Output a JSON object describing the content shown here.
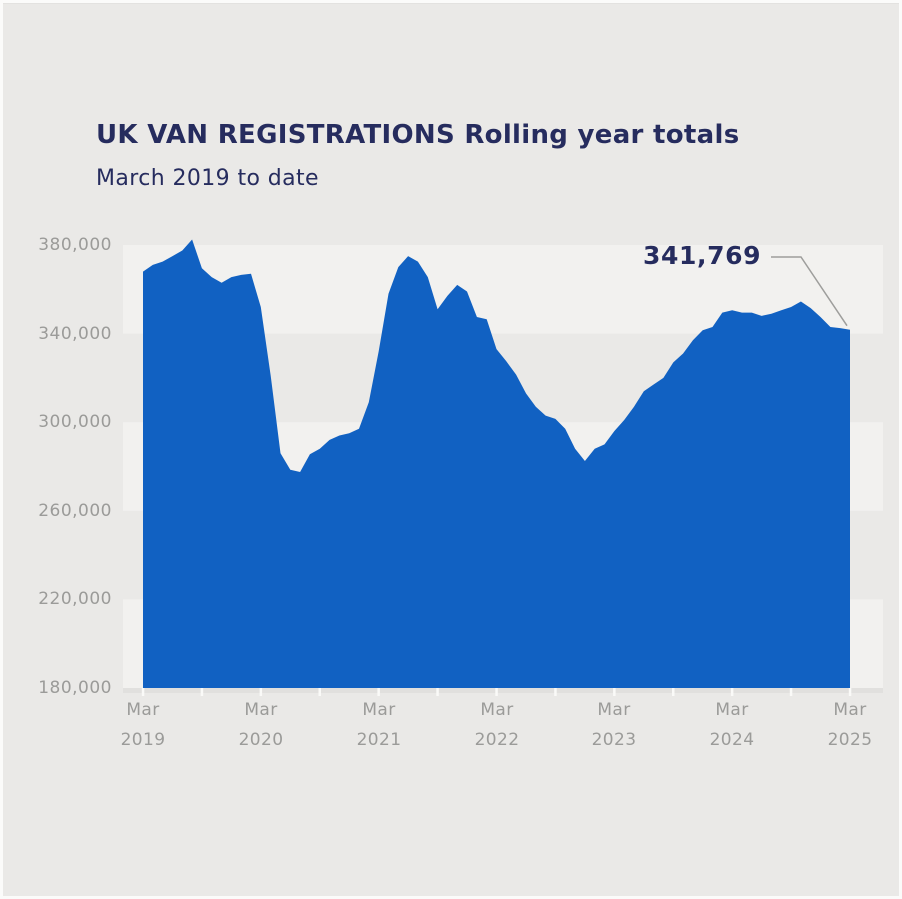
{
  "page": {
    "title": "UK VAN REGISTRATIONS Rolling year totals",
    "subtitle": "March 2019 to date"
  },
  "chart_data": {
    "type": "area",
    "title": "UK VAN REGISTRATIONS Rolling year totals",
    "subtitle": "March 2019 to date",
    "series_name": "UK van registrations, rolling year total",
    "x_interval": "monthly",
    "x_start": "Mar 2019",
    "x_end": "Mar 2025",
    "values": [
      368000,
      371000,
      372500,
      375000,
      377500,
      382500,
      369500,
      365500,
      363000,
      365500,
      366500,
      367000,
      352000,
      321000,
      286000,
      278500,
      277500,
      285500,
      288000,
      292000,
      294000,
      295000,
      297000,
      309000,
      332000,
      358000,
      370000,
      375000,
      372500,
      365500,
      351000,
      357000,
      362000,
      359000,
      347500,
      346500,
      333000,
      327500,
      321500,
      313000,
      307000,
      303000,
      301500,
      297000,
      288000,
      282500,
      288000,
      290000,
      296000,
      301000,
      307000,
      314000,
      317000,
      320000,
      327000,
      331000,
      337000,
      341500,
      343000,
      349500,
      350500,
      349500,
      349500,
      348000,
      349000,
      350500,
      352000,
      354500,
      351500,
      347500,
      343000,
      342500,
      341769
    ],
    "ylim": [
      180000,
      380000
    ],
    "y_ticks": [
      {
        "value": 380000,
        "label": "380,000"
      },
      {
        "value": 340000,
        "label": "340,000"
      },
      {
        "value": 300000,
        "label": "300,000"
      },
      {
        "value": 260000,
        "label": "260,000"
      },
      {
        "value": 220000,
        "label": "220,000"
      },
      {
        "value": 180000,
        "label": "180,000"
      }
    ],
    "x_ticks": [
      {
        "month": "Mar",
        "year": "2019"
      },
      {
        "month": "Mar",
        "year": "2020"
      },
      {
        "month": "Mar",
        "year": "2021"
      },
      {
        "month": "Mar",
        "year": "2022"
      },
      {
        "month": "Mar",
        "year": "2023"
      },
      {
        "month": "Mar",
        "year": "2024"
      },
      {
        "month": "Mar",
        "year": "2025"
      }
    ],
    "bands": [
      [
        380000,
        340000
      ],
      [
        300000,
        260000
      ],
      [
        220000,
        180000
      ]
    ],
    "grid": "alternating horizontal value bands, no gridlines",
    "legend": "none",
    "annotation": {
      "label": "341,769",
      "value": 341769,
      "x": "Mar 2025"
    }
  },
  "colors": {
    "background": "#eae9e7",
    "band": "#f2f1ef",
    "area": "#1161c2",
    "navy_text": "#262c5e",
    "axis_text": "#9b9b99",
    "axis_line": "#e1e0de",
    "tick": "#fafaf8",
    "callout_line": "#9e9e9c"
  }
}
